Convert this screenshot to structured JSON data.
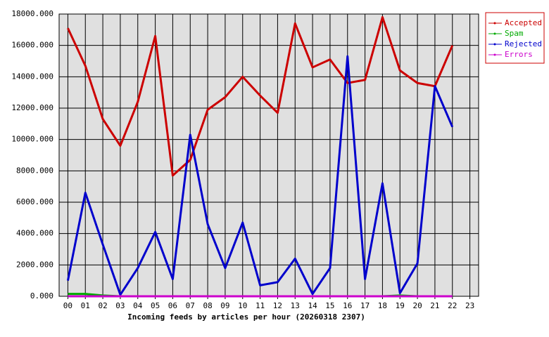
{
  "chart_data": {
    "type": "line",
    "x_label": "Incoming feeds by articles per hour (20260318 2307)",
    "categories": [
      "00",
      "01",
      "02",
      "03",
      "04",
      "05",
      "06",
      "07",
      "08",
      "09",
      "10",
      "11",
      "12",
      "13",
      "14",
      "15",
      "16",
      "17",
      "18",
      "19",
      "20",
      "21",
      "22",
      "23"
    ],
    "series": [
      {
        "name": "Accepted",
        "color": "#cc0000",
        "values": [
          17100,
          14700,
          11300,
          9600,
          12400,
          16600,
          7700,
          8700,
          11900,
          12700,
          14000,
          12800,
          11700,
          17400,
          14600,
          15100,
          13600,
          13800,
          17800,
          14400,
          13600,
          13400,
          16000,
          null
        ]
      },
      {
        "name": "Spam",
        "color": "#00aa00",
        "values": [
          150,
          150,
          50,
          0,
          0,
          0,
          0,
          0,
          0,
          0,
          0,
          0,
          0,
          0,
          0,
          0,
          0,
          0,
          0,
          50,
          0,
          0,
          0,
          null
        ]
      },
      {
        "name": "Rejected",
        "color": "#0000cc",
        "values": [
          1000,
          6600,
          3300,
          100,
          1800,
          4100,
          1100,
          10300,
          4600,
          1800,
          4700,
          700,
          900,
          2400,
          150,
          1800,
          15300,
          1100,
          7200,
          200,
          2100,
          13400,
          10800,
          null
        ]
      },
      {
        "name": "Errors",
        "color": "#cc00cc",
        "values": [
          0,
          0,
          0,
          0,
          0,
          0,
          0,
          0,
          0,
          0,
          0,
          0,
          0,
          0,
          0,
          0,
          0,
          0,
          0,
          0,
          0,
          0,
          0,
          null
        ]
      }
    ],
    "ylim": [
      0,
      18000
    ],
    "yticks": [
      {
        "value": 0,
        "label": "0.000"
      },
      {
        "value": 2000,
        "label": "2000.000"
      },
      {
        "value": 4000,
        "label": "4000.000"
      },
      {
        "value": 6000,
        "label": "6000.000"
      },
      {
        "value": 8000,
        "label": "8000.000"
      },
      {
        "value": 10000,
        "label": "10000.000"
      },
      {
        "value": 12000,
        "label": "12000.000"
      },
      {
        "value": 14000,
        "label": "14000.000"
      },
      {
        "value": 16000,
        "label": "16000.000"
      },
      {
        "value": 18000,
        "label": "18000.000"
      }
    ],
    "grid": true,
    "legend": "right"
  }
}
